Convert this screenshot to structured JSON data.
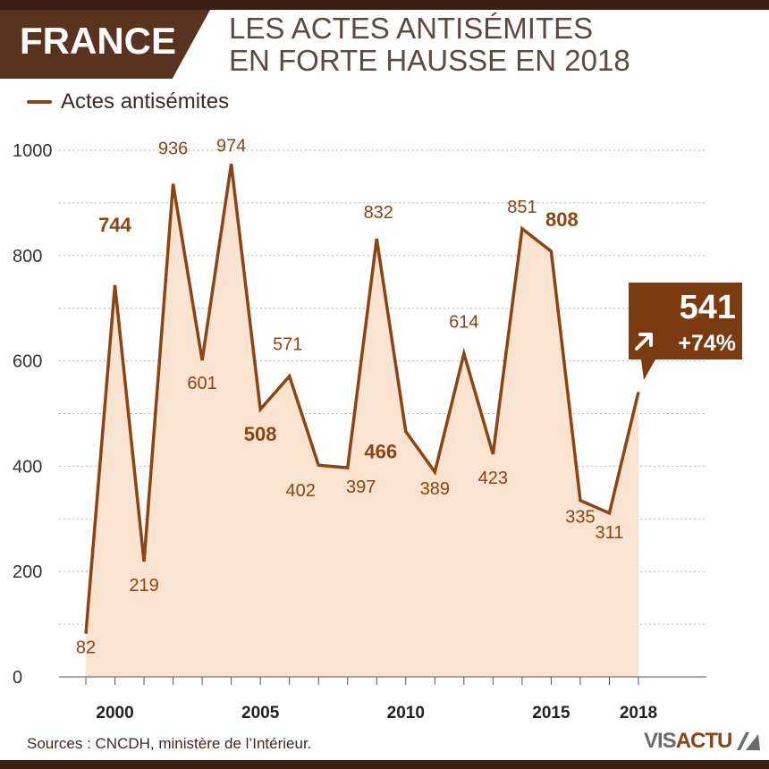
{
  "header": {
    "country": "FRANCE",
    "title_line1": "LES ACTES ANTISÉMITES",
    "title_line2": "EN FORTE HAUSSE EN 2018"
  },
  "legend": {
    "label": "Actes antisémites"
  },
  "footer": {
    "source": "Sources : CNCDH, ministère de l’Intérieur.",
    "logo_part1": "VIS",
    "logo_part2": "ACTU"
  },
  "colors": {
    "line": "#8b4513",
    "area": "#fbe3d1",
    "callout": "#7a3b10",
    "header_dark": "#3c1f14"
  },
  "callout": {
    "value": "541",
    "change": "+74%"
  },
  "chart_data": {
    "type": "area",
    "x": [
      1999,
      2000,
      2001,
      2002,
      2003,
      2004,
      2005,
      2006,
      2007,
      2008,
      2009,
      2010,
      2011,
      2012,
      2013,
      2014,
      2015,
      2016,
      2017,
      2018
    ],
    "series": [
      {
        "name": "Actes antisémites",
        "values": [
          82,
          744,
          219,
          936,
          601,
          974,
          508,
          571,
          402,
          397,
          832,
          466,
          389,
          614,
          423,
          851,
          808,
          335,
          311,
          541
        ],
        "labels": [
          "82",
          "744",
          "219",
          "936",
          "601",
          "974",
          "508",
          "571",
          "402",
          "397",
          "832",
          "466",
          "389",
          "614",
          "423",
          "851",
          "808",
          "335",
          "311",
          ""
        ]
      }
    ],
    "bold_labels": [
      2000,
      2005,
      2010,
      2015
    ],
    "ylim": [
      0,
      1000
    ],
    "yticks": [
      0,
      200,
      400,
      600,
      800,
      1000
    ],
    "xticks": [
      2000,
      2005,
      2010,
      2015,
      2018
    ],
    "xlabel": "",
    "ylabel": "",
    "grid": true
  }
}
